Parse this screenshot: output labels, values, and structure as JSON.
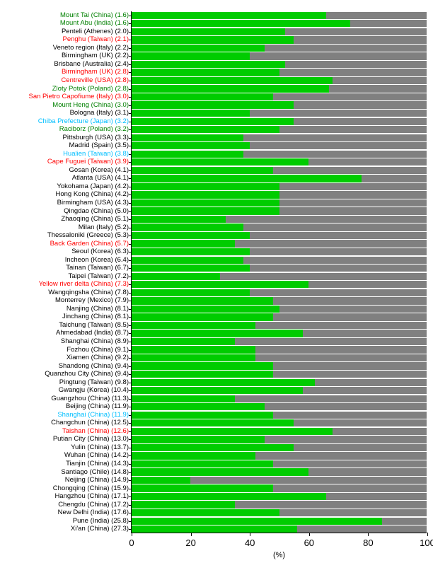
{
  "chart": {
    "type": "stacked-horizontal-bar",
    "xlabel": "(%)",
    "xlim": [
      0,
      100
    ],
    "xtick_step": 20,
    "xticks": [
      0,
      20,
      40,
      60,
      80,
      100
    ],
    "background_color": "#ffffff",
    "bar_colors": {
      "green": "#00cc00",
      "gray": "#808080"
    },
    "label_colors": {
      "black": "#000000",
      "red": "#ff0000",
      "darkgreen": "#008000",
      "cyan": "#00bfff"
    },
    "label_fontsize": 9.5,
    "tick_fontsize": 13,
    "axis_fontsize": 11,
    "rows": [
      {
        "label": "Mount Tai (China) (1.6)",
        "color": "darkgreen",
        "green": 66
      },
      {
        "label": "Mount Abu (India) (1.6)",
        "color": "darkgreen",
        "green": 74
      },
      {
        "label": "Penteli (Athenes) (2.0)",
        "color": "black",
        "green": 52
      },
      {
        "label": "Penghu (Taiwan) (2.1)",
        "color": "red",
        "green": 55
      },
      {
        "label": "Veneto region (Italy) (2.2)",
        "color": "black",
        "green": 45
      },
      {
        "label": "Birmingham (UK) (2.2)",
        "color": "black",
        "green": 40
      },
      {
        "label": "Brisbane (Australia) (2.4)",
        "color": "black",
        "green": 52
      },
      {
        "label": "Birmingham (UK) (2.8)",
        "color": "red",
        "green": 50
      },
      {
        "label": "Centreville (USA) (2.8)",
        "color": "red",
        "green": 68
      },
      {
        "label": "Zloty Potok (Poland) (2.8)",
        "color": "darkgreen",
        "green": 67
      },
      {
        "label": "San Pietro Capofiume (Italy) (3.0)",
        "color": "red",
        "green": 48
      },
      {
        "label": "Mount Heng (China) (3.0)",
        "color": "darkgreen",
        "green": 55
      },
      {
        "label": "Bologna (Italy) (3.1)",
        "color": "black",
        "green": 40
      },
      {
        "label": "Chiba Prefecture (Japan) (3.2)",
        "color": "cyan",
        "green": 55
      },
      {
        "label": "Raciborz (Poland) (3.2)",
        "color": "darkgreen",
        "green": 50
      },
      {
        "label": "Pittsburgh (USA) (3.3)",
        "color": "black",
        "green": 38
      },
      {
        "label": "Madrid (Spain) (3.5)",
        "color": "black",
        "green": 40
      },
      {
        "label": "Hualien (Taiwan) (3.8)",
        "color": "cyan",
        "green": 38
      },
      {
        "label": "Cape Fuguei (Taiwan) (3.9)",
        "color": "red",
        "green": 60
      },
      {
        "label": "Gosan (Korea) (4.1)",
        "color": "black",
        "green": 48
      },
      {
        "label": "Atlanta (USA) (4.1)",
        "color": "black",
        "green": 78
      },
      {
        "label": "Yokohama (Japan) (4.2)",
        "color": "black",
        "green": 50
      },
      {
        "label": "Hong Kong (China) (4.2)",
        "color": "black",
        "green": 50
      },
      {
        "label": "Birmingham (USA) (4.3)",
        "color": "black",
        "green": 50
      },
      {
        "label": "Qingdao (China) (5.0)",
        "color": "black",
        "green": 50
      },
      {
        "label": "Zhaoqing (China) (5.1)",
        "color": "black",
        "green": 32
      },
      {
        "label": "Milan (Italy) (5.2)",
        "color": "black",
        "green": 38
      },
      {
        "label": "Thessaloniki (Greece) (5.3)",
        "color": "black",
        "green": 40
      },
      {
        "label": "Back Garden (China) (5.7)",
        "color": "red",
        "green": 35
      },
      {
        "label": "Seoul (Korea) (6.3)",
        "color": "black",
        "green": 40
      },
      {
        "label": "Incheon (Korea) (6.4)",
        "color": "black",
        "green": 38
      },
      {
        "label": "Tainan (Taiwan) (6.7)",
        "color": "black",
        "green": 40
      },
      {
        "label": "Taipei (Taiwan) (7.2)",
        "color": "black",
        "green": 30
      },
      {
        "label": "Yellow river delta (China) (7.3)",
        "color": "red",
        "green": 60
      },
      {
        "label": "Wangqingsha (China) (7.8)",
        "color": "black",
        "green": 40
      },
      {
        "label": "Monterrey (Mexico) (7.9)",
        "color": "black",
        "green": 48
      },
      {
        "label": "Nanjing (China) (8.1)",
        "color": "black",
        "green": 50
      },
      {
        "label": "Jinchang (China) (8.1)",
        "color": "black",
        "green": 48
      },
      {
        "label": "Taichung (Taiwan) (8.5)",
        "color": "black",
        "green": 42
      },
      {
        "label": "Ahmedabad (India) (8.7)",
        "color": "black",
        "green": 58
      },
      {
        "label": "Shanghai (China) (8.9)",
        "color": "black",
        "green": 35
      },
      {
        "label": "Fozhou (China) (9.1)",
        "color": "black",
        "green": 42
      },
      {
        "label": "Xiamen (China) (9.2)",
        "color": "black",
        "green": 42
      },
      {
        "label": "Shandong (China) (9.4)",
        "color": "black",
        "green": 48
      },
      {
        "label": "Quanzhou City (China) (9.4)",
        "color": "black",
        "green": 48
      },
      {
        "label": "Pingtung (Taiwan) (9.8)",
        "color": "black",
        "green": 62
      },
      {
        "label": "Gwangju (Korea) (10.4)",
        "color": "black",
        "green": 58
      },
      {
        "label": "Guangzhou (China) (11.3)",
        "color": "black",
        "green": 35
      },
      {
        "label": "Beijing (China) (11.9)",
        "color": "black",
        "green": 45
      },
      {
        "label": "Shanghai (China) (11.9)",
        "color": "cyan",
        "green": 48
      },
      {
        "label": "Changchun (China) (12.5)",
        "color": "black",
        "green": 55
      },
      {
        "label": "Taishan (China) (12.6)",
        "color": "red",
        "green": 68
      },
      {
        "label": "Putian City (China) (13.0)",
        "color": "black",
        "green": 45
      },
      {
        "label": "Yulin (China) (13.7)",
        "color": "black",
        "green": 55
      },
      {
        "label": "Wuhan (China) (14.2)",
        "color": "black",
        "green": 42
      },
      {
        "label": "Tianjin (China) (14.3)",
        "color": "black",
        "green": 48
      },
      {
        "label": "Santiago (Chile) (14.8)",
        "color": "black",
        "green": 60
      },
      {
        "label": "Neijing (China) (14.9)",
        "color": "black",
        "green": 20
      },
      {
        "label": "Chongqing (China) (15.9)",
        "color": "black",
        "green": 48
      },
      {
        "label": "Hangzhou (China) (17.1)",
        "color": "black",
        "green": 66
      },
      {
        "label": "Chengdu (China) (17.2)",
        "color": "black",
        "green": 35
      },
      {
        "label": "New Delhi (India) (17.6)",
        "color": "black",
        "green": 50
      },
      {
        "label": "Pune (India) (25.8)",
        "color": "black",
        "green": 85
      },
      {
        "label": "Xi'an (China) (27.3)",
        "color": "black",
        "green": 56
      }
    ]
  }
}
